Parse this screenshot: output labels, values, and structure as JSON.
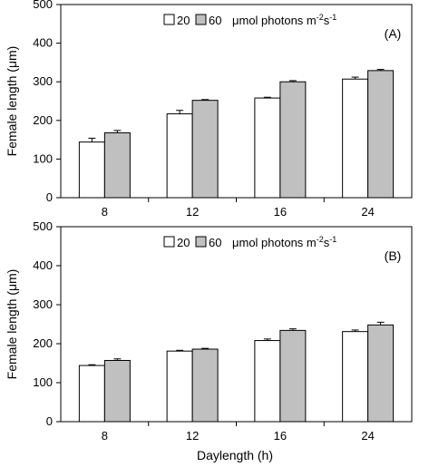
{
  "figure": {
    "xlabel": "Daylength (h)",
    "ylabel": "Female length (μm)"
  },
  "legend": {
    "unit_text": "μmol photons m",
    "unit_sup_1": "-2",
    "unit_mid": "s",
    "unit_sup_2": "-1"
  },
  "chart_data": [
    {
      "type": "bar",
      "panel_label": "(A)",
      "categories": [
        "8",
        "12",
        "16",
        "24"
      ],
      "ylabel": "Female length (μm)",
      "ylim": [
        0,
        500
      ],
      "yticks": [
        0,
        100,
        200,
        300,
        400,
        500
      ],
      "grid": false,
      "legend_position": "top-center",
      "series": [
        {
          "name": "20",
          "color": "#ffffff",
          "values": [
            144,
            217,
            258,
            307
          ],
          "errors": [
            10,
            9,
            2,
            5
          ]
        },
        {
          "name": "60",
          "color": "#c0c0c0",
          "values": [
            168,
            252,
            300,
            329
          ],
          "errors": [
            6,
            2,
            3,
            3
          ]
        }
      ]
    },
    {
      "type": "bar",
      "panel_label": "(B)",
      "categories": [
        "8",
        "12",
        "16",
        "24"
      ],
      "xlabel": "Daylength (h)",
      "ylabel": "Female length (μm)",
      "ylim": [
        0,
        500
      ],
      "yticks": [
        0,
        100,
        200,
        300,
        400,
        500
      ],
      "grid": false,
      "legend_position": "top-center",
      "series": [
        {
          "name": "20",
          "color": "#ffffff",
          "values": [
            144,
            181,
            208,
            231
          ],
          "errors": [
            2,
            2,
            4,
            4
          ]
        },
        {
          "name": "60",
          "color": "#c0c0c0",
          "values": [
            157,
            186,
            234,
            248
          ],
          "errors": [
            4,
            2,
            4,
            7
          ]
        }
      ]
    }
  ]
}
